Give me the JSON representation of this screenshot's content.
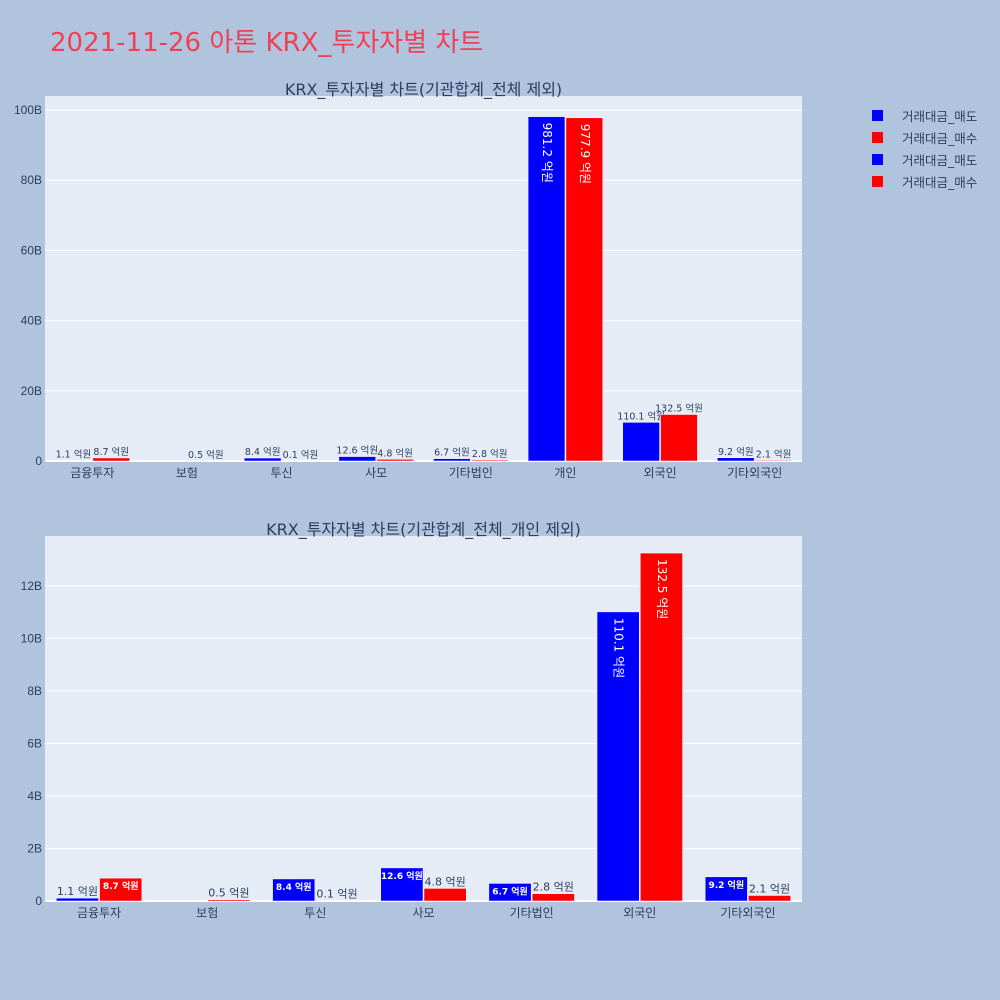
{
  "page_title": "2021-11-26 아톤 KRX_투자자별 차트",
  "colors": {
    "page_bg": "#b0c4de",
    "plot_bg": "#e5ecf6",
    "title": "#ef4056",
    "sell": "#0000ff",
    "buy": "#ff0000",
    "text": "#2a3f5f",
    "grid": "#ffffff"
  },
  "legend": [
    {
      "name": "거래대금_매도",
      "color": "#0000ff"
    },
    {
      "name": "거래대금_매수",
      "color": "#ff0000"
    },
    {
      "name": "거래대금_매도",
      "color": "#0000ff"
    },
    {
      "name": "거래대금_매수",
      "color": "#ff0000"
    }
  ],
  "chart_data": [
    {
      "type": "bar",
      "title": "KRX_투자자별 차트(기관합계_전체 제외)",
      "categories": [
        "금융투자",
        "보험",
        "투신",
        "사모",
        "기타법인",
        "개인",
        "외국인",
        "기타외국인"
      ],
      "series": [
        {
          "name": "거래대금_매도",
          "values": [
            0.11,
            0,
            0.84,
            1.26,
            0.67,
            98.12,
            11.01,
            0.92
          ],
          "labels": [
            "1.1 억원",
            "",
            "8.4 억원",
            "12.6 억원",
            "6.7 억원",
            "981.2 억원",
            "110.1 억원",
            "9.2 억원"
          ]
        },
        {
          "name": "거래대금_매수",
          "values": [
            0.87,
            0.05,
            0.01,
            0.48,
            0.28,
            97.79,
            13.25,
            0.21
          ],
          "labels": [
            "8.7 억원",
            "0.5 억원",
            "0.1 억원",
            "4.8 억원",
            "2.8 억원",
            "977.9 억원",
            "132.5 억원",
            "2.1 억원"
          ]
        }
      ],
      "ylim": [
        0,
        104
      ],
      "yticks": [
        0,
        20,
        40,
        60,
        80,
        100
      ],
      "ytick_labels": [
        "0",
        "20B",
        "40B",
        "60B",
        "80B",
        "100B"
      ],
      "grid": true,
      "legend": "right"
    },
    {
      "type": "bar",
      "title": "KRX_투자자별 차트(기관합계_전체_개인 제외)",
      "categories": [
        "금융투자",
        "보험",
        "투신",
        "사모",
        "기타법인",
        "외국인",
        "기타외국인"
      ],
      "series": [
        {
          "name": "거래대금_매도",
          "values": [
            0.11,
            0,
            0.84,
            1.26,
            0.67,
            11.01,
            0.92
          ],
          "labels": [
            "1.1 억원",
            "",
            "8.4 억원",
            "12.6 억원",
            "6.7 억원",
            "110.1 억원",
            "9.2 억원"
          ]
        },
        {
          "name": "거래대금_매수",
          "values": [
            0.87,
            0.05,
            0.01,
            0.48,
            0.28,
            13.25,
            0.21
          ],
          "labels": [
            "8.7 억원",
            "0.5 억원",
            "0.1 억원",
            "4.8 억원",
            "2.8 억원",
            "132.5 억원",
            "2.1 억원"
          ]
        }
      ],
      "ylim": [
        0,
        13.9
      ],
      "yticks": [
        0,
        2,
        4,
        6,
        8,
        10,
        12
      ],
      "ytick_labels": [
        "0",
        "2B",
        "4B",
        "6B",
        "8B",
        "10B",
        "12B"
      ],
      "grid": true,
      "legend": "right"
    }
  ]
}
